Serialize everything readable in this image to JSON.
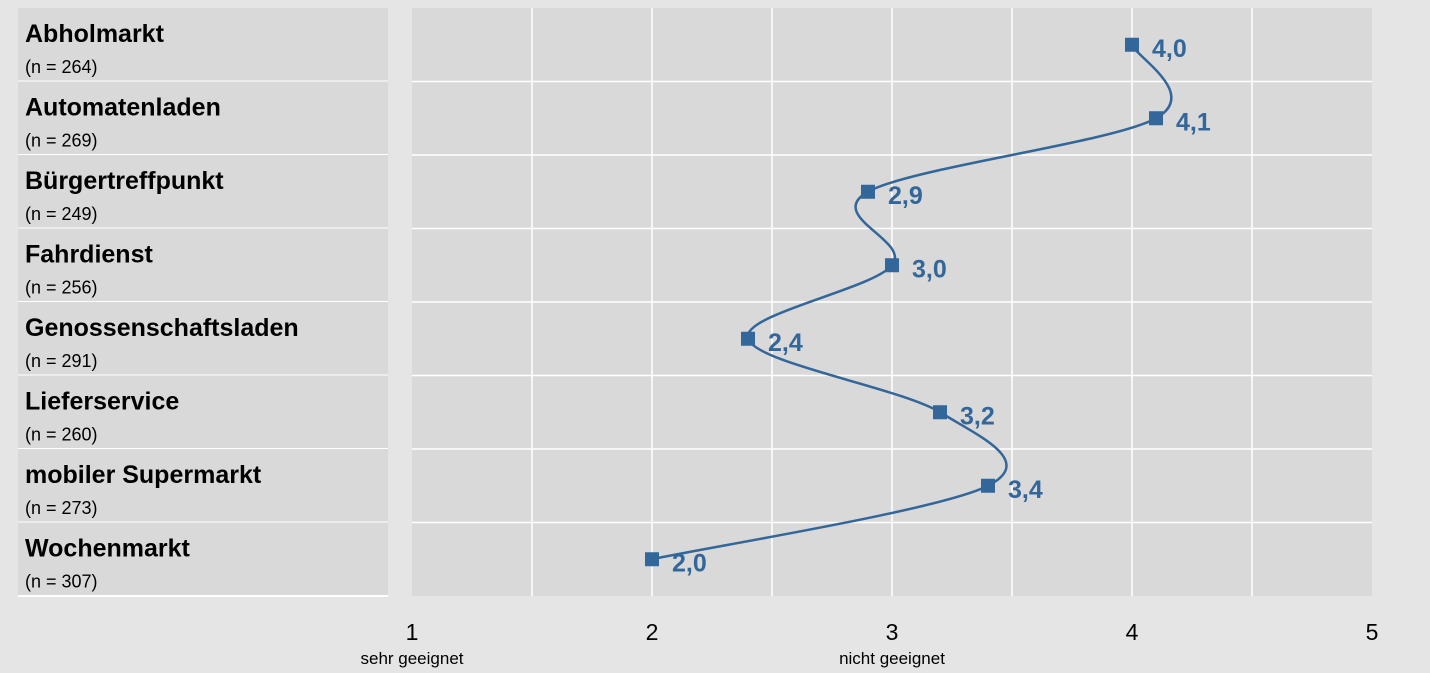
{
  "chart_data": {
    "type": "line",
    "orientation": "horizontal",
    "categories": [
      {
        "label": "Abholmarkt",
        "n": "(n = 264)"
      },
      {
        "label": "Automatenladen",
        "n": "(n = 269)"
      },
      {
        "label": "Bürgertreffpunkt",
        "n": "(n = 249)"
      },
      {
        "label": "Fahrdienst",
        "n": "(n = 256)"
      },
      {
        "label": "Genossenschaftsladen",
        "n": "(n = 291)"
      },
      {
        "label": "Lieferservice",
        "n": "(n = 260)"
      },
      {
        "label": "mobiler Supermarkt",
        "n": " (n = 273)"
      },
      {
        "label": "Wochenmarkt",
        "n": "(n = 307)"
      }
    ],
    "values": [
      4.0,
      4.1,
      2.9,
      3.0,
      2.4,
      3.2,
      3.4,
      2.0
    ],
    "value_labels": [
      "4,0",
      "4,1",
      "2,9",
      "3,0",
      "2,4",
      "3,2",
      "3,4",
      "2,0"
    ],
    "xlim": [
      1,
      5
    ],
    "x_ticks": [
      1,
      2,
      3,
      4,
      5
    ],
    "x_tick_labels": [
      "1",
      "2",
      "3",
      "4",
      "5"
    ],
    "x_annotations": [
      {
        "at": 1,
        "text": "sehr geeignet"
      },
      {
        "at": 3,
        "text": "nicht geeignet"
      }
    ],
    "grid": true,
    "line_smooth": true,
    "colors": {
      "series": "#336699",
      "plot_background": "#d9d9d9",
      "label_background": "#d9d9d9",
      "page_background": "#e5e5e5",
      "grid": "#ffffff",
      "text": "#000000"
    }
  }
}
